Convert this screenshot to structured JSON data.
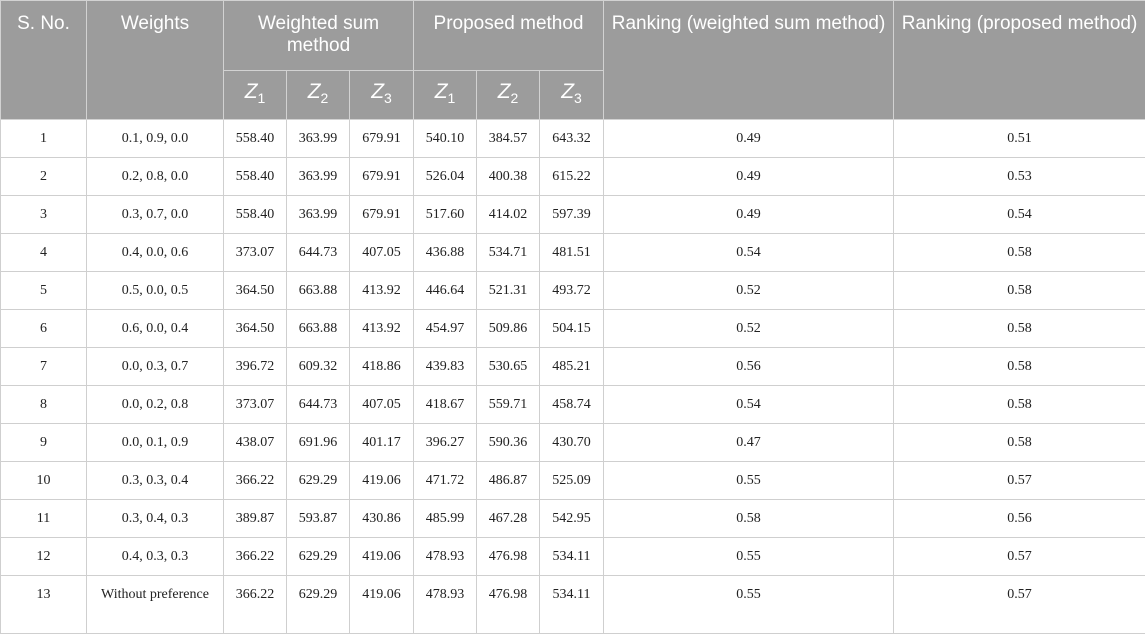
{
  "headers": {
    "sno": "S. No.",
    "weights": "Weights",
    "wsm": "Weighted sum method",
    "proposed": "Proposed method",
    "rank_wsm": "Ranking (weighted sum method)",
    "rank_proposed": "Ranking (proposed method)",
    "z_letter": "Z",
    "z_subs": [
      "1",
      "2",
      "3"
    ]
  },
  "rows": [
    {
      "sno": "1",
      "weights": "0.1, 0.9, 0.0",
      "w1": "558.40",
      "w2": "363.99",
      "w3": "679.91",
      "p1": "540.10",
      "p2": "384.57",
      "p3": "643.32",
      "r_wsm": "0.49",
      "r_prop": "0.51"
    },
    {
      "sno": "2",
      "weights": "0.2, 0.8, 0.0",
      "w1": "558.40",
      "w2": "363.99",
      "w3": "679.91",
      "p1": "526.04",
      "p2": "400.38",
      "p3": "615.22",
      "r_wsm": "0.49",
      "r_prop": "0.53"
    },
    {
      "sno": "3",
      "weights": "0.3, 0.7, 0.0",
      "w1": "558.40",
      "w2": "363.99",
      "w3": "679.91",
      "p1": "517.60",
      "p2": "414.02",
      "p3": "597.39",
      "r_wsm": "0.49",
      "r_prop": "0.54"
    },
    {
      "sno": "4",
      "weights": "0.4, 0.0, 0.6",
      "w1": "373.07",
      "w2": "644.73",
      "w3": "407.05",
      "p1": "436.88",
      "p2": "534.71",
      "p3": "481.51",
      "r_wsm": "0.54",
      "r_prop": "0.58"
    },
    {
      "sno": "5",
      "weights": "0.5, 0.0, 0.5",
      "w1": "364.50",
      "w2": "663.88",
      "w3": "413.92",
      "p1": "446.64",
      "p2": "521.31",
      "p3": "493.72",
      "r_wsm": "0.52",
      "r_prop": "0.58"
    },
    {
      "sno": "6",
      "weights": "0.6, 0.0, 0.4",
      "w1": "364.50",
      "w2": "663.88",
      "w3": "413.92",
      "p1": "454.97",
      "p2": "509.86",
      "p3": "504.15",
      "r_wsm": "0.52",
      "r_prop": "0.58"
    },
    {
      "sno": "7",
      "weights": "0.0, 0.3, 0.7",
      "w1": "396.72",
      "w2": "609.32",
      "w3": "418.86",
      "p1": "439.83",
      "p2": "530.65",
      "p3": "485.21",
      "r_wsm": "0.56",
      "r_prop": "0.58"
    },
    {
      "sno": "8",
      "weights": "0.0, 0.2, 0.8",
      "w1": "373.07",
      "w2": "644.73",
      "w3": "407.05",
      "p1": "418.67",
      "p2": "559.71",
      "p3": "458.74",
      "r_wsm": "0.54",
      "r_prop": "0.58"
    },
    {
      "sno": "9",
      "weights": "0.0, 0.1, 0.9",
      "w1": "438.07",
      "w2": "691.96",
      "w3": "401.17",
      "p1": "396.27",
      "p2": "590.36",
      "p3": "430.70",
      "r_wsm": "0.47",
      "r_prop": "0.58"
    },
    {
      "sno": "10",
      "weights": "0.3, 0.3, 0.4",
      "w1": "366.22",
      "w2": "629.29",
      "w3": "419.06",
      "p1": "471.72",
      "p2": "486.87",
      "p3": "525.09",
      "r_wsm": "0.55",
      "r_prop": "0.57"
    },
    {
      "sno": "11",
      "weights": "0.3, 0.4, 0.3",
      "w1": "389.87",
      "w2": "593.87",
      "w3": "430.86",
      "p1": "485.99",
      "p2": "467.28",
      "p3": "542.95",
      "r_wsm": "0.58",
      "r_prop": "0.56"
    },
    {
      "sno": "12",
      "weights": "0.4, 0.3, 0.3",
      "w1": "366.22",
      "w2": "629.29",
      "w3": "419.06",
      "p1": "478.93",
      "p2": "476.98",
      "p3": "534.11",
      "r_wsm": "0.55",
      "r_prop": "0.57"
    },
    {
      "sno": "13",
      "weights": "Without preference",
      "w1": "366.22",
      "w2": "629.29",
      "w3": "419.06",
      "p1": "478.93",
      "p2": "476.98",
      "p3": "534.11",
      "r_wsm": "0.55",
      "r_prop": "0.57"
    }
  ]
}
